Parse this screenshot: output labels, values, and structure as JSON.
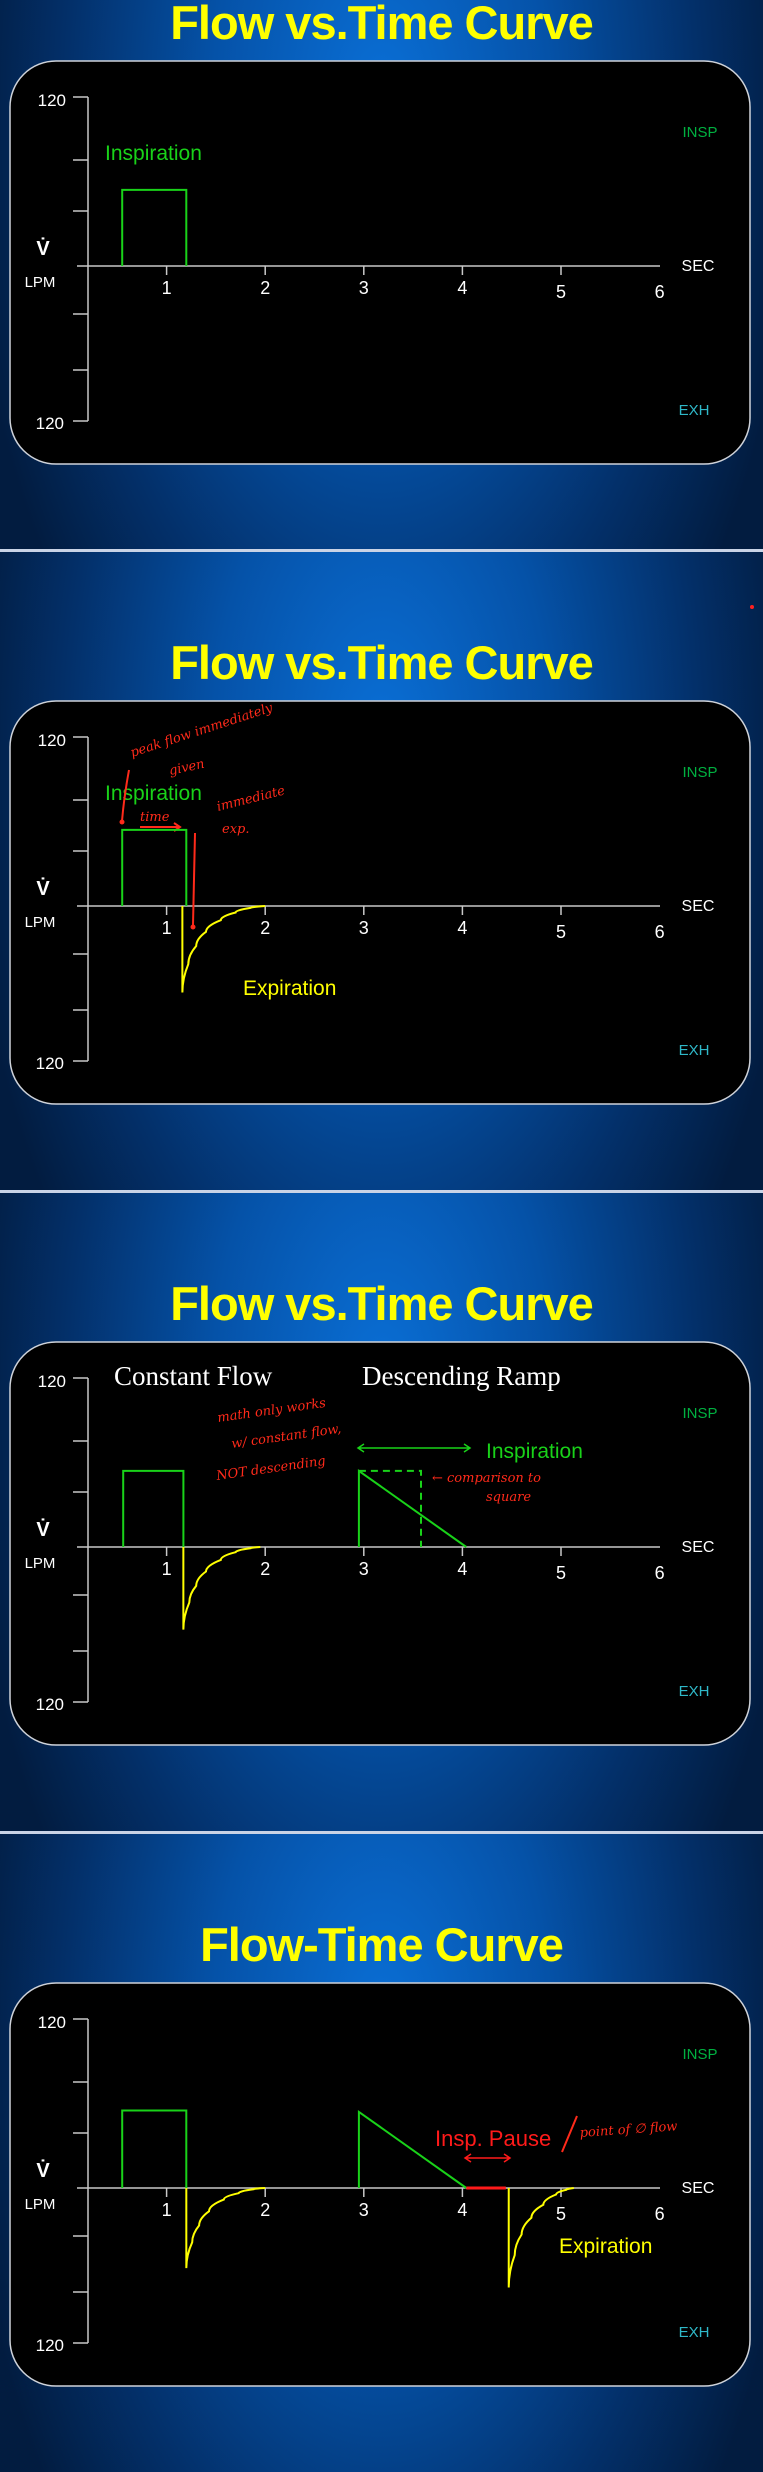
{
  "slides": [
    {
      "title": "Flow vs.Time Curve",
      "labels": {
        "inspiration": "Inspiration"
      }
    },
    {
      "title": "Flow vs.Time Curve",
      "labels": {
        "inspiration": "Inspiration",
        "expiration": "Expiration"
      },
      "handwriting": {
        "note1a": "peak flow immediately",
        "note1b": "given",
        "note2": "time",
        "note3a": "immediate",
        "note3b": "exp."
      }
    },
    {
      "title": "Flow vs.Time Curve",
      "labels": {
        "constant_flow": "Constant Flow",
        "descending_ramp": "Descending Ramp",
        "inspiration": "Inspiration"
      },
      "handwriting": {
        "note1a": "math only works",
        "note1b": "w/ constant flow,",
        "note1c": "NOT descending",
        "note2a": "← comparison to",
        "note2b": "square"
      }
    },
    {
      "title": "Flow-Time Curve",
      "labels": {
        "insp_pause": "Insp. Pause",
        "expiration": "Expiration"
      },
      "handwriting": {
        "note1": "point of ∅ flow"
      }
    }
  ],
  "colors": {
    "inspiration": "#19d219",
    "expiration": "#ffff00",
    "pause": "#ff1a1a",
    "insp_label": "#00b040",
    "exh_label": "#2fb8c8",
    "title": "#ffff00",
    "annotation": "#ff2a1a"
  },
  "axis": {
    "y_symbol": "V̇",
    "y_unit": "LPM",
    "x_unit": "SEC",
    "y_top_label": "120",
    "y_bottom_label": "120",
    "insp": "INSP",
    "exh": "EXH",
    "x_tick_labels": [
      "1",
      "2",
      "3",
      "4",
      "5",
      "6"
    ]
  },
  "chart_data": [
    {
      "type": "line",
      "xlabel": "SEC",
      "ylabel": "LPM",
      "xlim": [
        0,
        6
      ],
      "ylim": [
        -120,
        120
      ],
      "series": [
        {
          "kind": "inspiration",
          "points": [
            [
              0.55,
              0
            ],
            [
              0.55,
              54
            ],
            [
              1.2,
              54
            ],
            [
              1.2,
              0
            ]
          ]
        }
      ]
    },
    {
      "type": "line",
      "xlabel": "SEC",
      "ylabel": "LPM",
      "xlim": [
        0,
        6
      ],
      "ylim": [
        -120,
        120
      ],
      "series": [
        {
          "kind": "inspiration",
          "points": [
            [
              0.55,
              0
            ],
            [
              0.55,
              54
            ],
            [
              1.2,
              54
            ],
            [
              1.2,
              0
            ]
          ]
        },
        {
          "kind": "expiration",
          "points": [
            [
              1.16,
              0
            ],
            [
              1.16,
              -67
            ],
            [
              1.22,
              -45
            ],
            [
              1.3,
              -31
            ],
            [
              1.4,
              -20
            ],
            [
              1.55,
              -11
            ],
            [
              1.7,
              -5
            ],
            [
              1.85,
              -1.5
            ],
            [
              2.0,
              0
            ]
          ]
        }
      ]
    },
    {
      "type": "line",
      "xlabel": "SEC",
      "ylabel": "LPM",
      "xlim": [
        0,
        6
      ],
      "ylim": [
        -120,
        120
      ],
      "series": [
        {
          "kind": "inspiration",
          "points": [
            [
              0.56,
              0
            ],
            [
              0.56,
              54
            ],
            [
              1.17,
              54
            ],
            [
              1.17,
              0
            ]
          ]
        },
        {
          "kind": "expiration",
          "points": [
            [
              1.17,
              0
            ],
            [
              1.17,
              -64
            ],
            [
              1.23,
              -43
            ],
            [
              1.3,
              -30
            ],
            [
              1.4,
              -19
            ],
            [
              1.55,
              -10
            ],
            [
              1.7,
              -4
            ],
            [
              1.85,
              -1
            ],
            [
              1.95,
              0
            ]
          ]
        },
        {
          "kind": "inspiration",
          "points": [
            [
              2.95,
              0
            ],
            [
              2.95,
              54
            ],
            [
              4.04,
              0
            ]
          ]
        },
        {
          "kind": "inspiration-dashed",
          "points": [
            [
              2.95,
              54
            ],
            [
              3.58,
              54
            ],
            [
              3.58,
              0
            ]
          ]
        }
      ]
    },
    {
      "type": "line",
      "xlabel": "SEC",
      "ylabel": "LPM",
      "xlim": [
        0,
        6
      ],
      "ylim": [
        -120,
        120
      ],
      "series": [
        {
          "kind": "inspiration",
          "points": [
            [
              0.55,
              0
            ],
            [
              0.55,
              55
            ],
            [
              1.2,
              55
            ],
            [
              1.2,
              0
            ]
          ]
        },
        {
          "kind": "expiration",
          "points": [
            [
              1.2,
              0
            ],
            [
              1.2,
              -62
            ],
            [
              1.26,
              -42
            ],
            [
              1.33,
              -29
            ],
            [
              1.43,
              -18
            ],
            [
              1.58,
              -9
            ],
            [
              1.73,
              -4
            ],
            [
              1.88,
              -1
            ],
            [
              2.0,
              0
            ]
          ]
        },
        {
          "kind": "inspiration",
          "points": [
            [
              2.95,
              0
            ],
            [
              2.95,
              54
            ],
            [
              4.04,
              0
            ]
          ]
        },
        {
          "kind": "pause",
          "points": [
            [
              4.04,
              0
            ],
            [
              4.44,
              0
            ]
          ]
        },
        {
          "kind": "expiration",
          "points": [
            [
              4.47,
              0
            ],
            [
              4.47,
              -77
            ],
            [
              4.53,
              -52
            ],
            [
              4.6,
              -36
            ],
            [
              4.7,
              -23
            ],
            [
              4.82,
              -13
            ],
            [
              4.95,
              -5
            ],
            [
              5.05,
              -1.5
            ],
            [
              5.13,
              0
            ]
          ]
        }
      ]
    }
  ]
}
